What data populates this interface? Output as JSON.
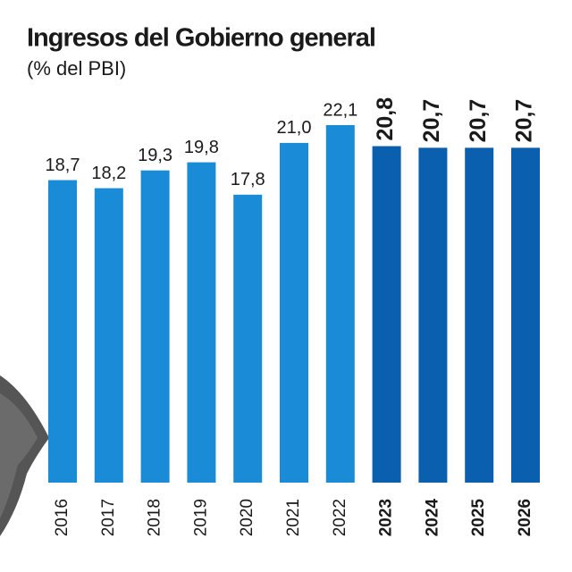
{
  "chart_data": {
    "type": "bar",
    "title": "Ingresos del Gobierno general",
    "subtitle": "(% del PBI)",
    "categories": [
      "2016",
      "2017",
      "2018",
      "2019",
      "2020",
      "2021",
      "2022",
      "2023",
      "2024",
      "2025",
      "2026"
    ],
    "values": [
      18.7,
      18.2,
      19.3,
      19.8,
      17.8,
      21.0,
      22.1,
      20.8,
      20.7,
      20.7,
      20.7
    ],
    "value_labels": [
      "18,7",
      "18,2",
      "19,3",
      "19,8",
      "17,8",
      "21,0",
      "22,1",
      "20,8",
      "20,7",
      "20,7",
      "20,7"
    ],
    "colors": [
      "#1a8bd6",
      "#1a8bd6",
      "#1a8bd6",
      "#1a8bd6",
      "#1a8bd6",
      "#1a8bd6",
      "#1a8bd6",
      "#0a5fae",
      "#0a5fae",
      "#0a5fae",
      "#0a5fae"
    ]
  }
}
